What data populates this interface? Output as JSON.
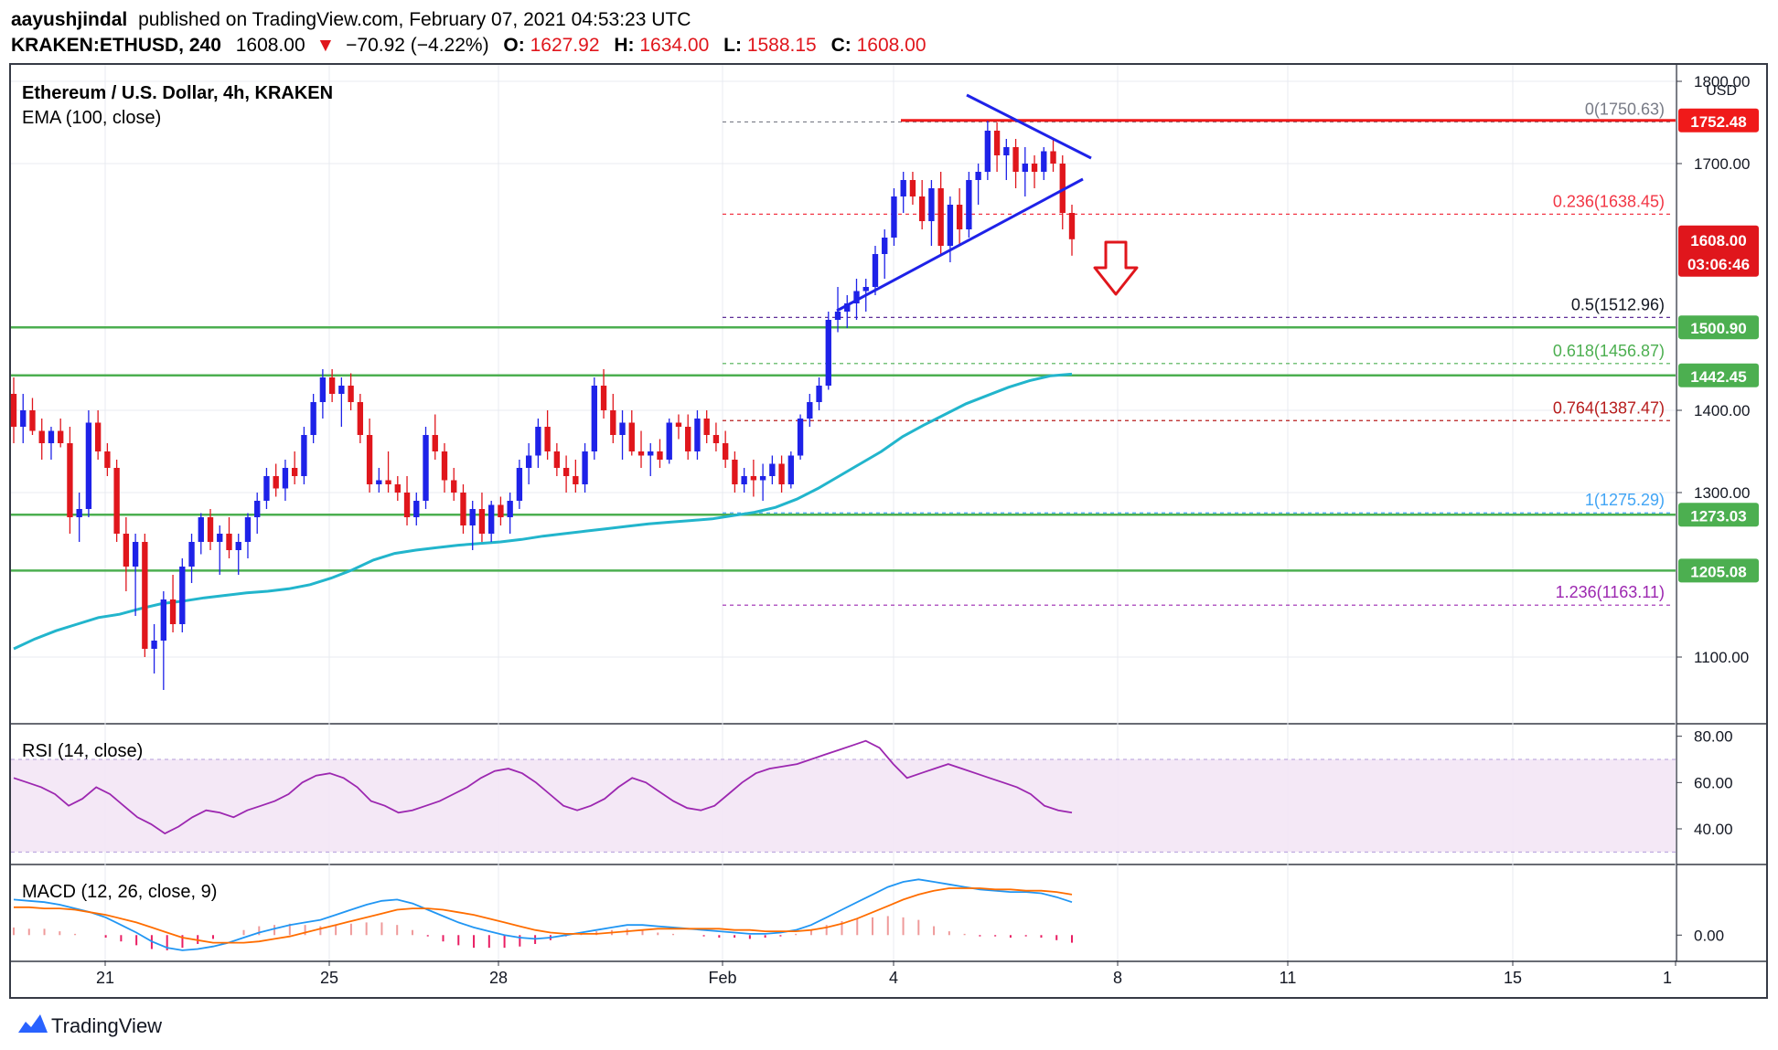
{
  "header": {
    "author": "aayushjindal",
    "published": "published on TradingView.com, February 07, 2021 04:53:23 UTC",
    "ticker": "KRAKEN:ETHUSD, 240",
    "last": "1608.00",
    "change": "−70.92 (−4.22%)",
    "open_label": "O:",
    "open": "1627.92",
    "high_label": "H:",
    "high": "1634.00",
    "low_label": "L:",
    "low": "1588.15",
    "close_label": "C:",
    "close": "1608.00"
  },
  "legend": {
    "symbol": "Ethereum / U.S. Dollar, 4h, KRAKEN",
    "ema": "EMA (100, close)",
    "currency": "USD"
  },
  "footer": {
    "logo_text": "TradingView"
  },
  "colors": {
    "up": "#1e22e8",
    "down": "#e0161c",
    "ema": "#22b5cc",
    "support": "#4caf50",
    "resistance": "#f01a1a",
    "rsi": "#9c27b0",
    "macd": "#2196f3",
    "signal": "#ff6d00",
    "hist": "#e91e63"
  },
  "chart_data": [
    {
      "type": "candlestick",
      "title": "Ethereum / U.S. Dollar, 4h, KRAKEN",
      "ylim": [
        1020,
        1820
      ],
      "x_ticks": [
        "21",
        "25",
        "28",
        "Feb",
        "4",
        "8",
        "11",
        "15",
        "1"
      ],
      "y_ticks": [
        "1800.00",
        "1700.00",
        "1400.00",
        "1300.00",
        "1100.00"
      ],
      "current_price": {
        "value": "1608.00",
        "countdown": "03:06:46"
      },
      "horizontal_levels": [
        {
          "label": "1752.48",
          "value": 1752.48,
          "role": "resistance"
        },
        {
          "label": "1500.90",
          "value": 1500.9,
          "role": "support"
        },
        {
          "label": "1442.45",
          "value": 1442.45,
          "role": "support"
        },
        {
          "label": "1273.03",
          "value": 1273.03,
          "role": "support"
        },
        {
          "label": "1205.08",
          "value": 1205.08,
          "role": "support"
        }
      ],
      "fibonacci": [
        {
          "label": "0(1750.63)",
          "value": 1750.63,
          "color": "#787b86"
        },
        {
          "label": "0.236(1638.45)",
          "value": 1638.45,
          "color": "#f23645"
        },
        {
          "label": "0.5(1512.96)",
          "value": 1512.96,
          "color": "#4a148c"
        },
        {
          "label": "0.618(1456.87)",
          "value": 1456.87,
          "color": "#4caf50"
        },
        {
          "label": "0.764(1387.47)",
          "value": 1387.47,
          "color": "#b71c1c"
        },
        {
          "label": "1(1275.29)",
          "value": 1275.29,
          "color": "#42a5f5"
        },
        {
          "label": "1.236(1163.11)",
          "value": 1163.11,
          "color": "#9c27b0"
        }
      ],
      "ema_100": [
        1110,
        1122,
        1132,
        1140,
        1148,
        1152,
        1159,
        1165,
        1168,
        1172,
        1175,
        1178,
        1180,
        1183,
        1188,
        1196,
        1206,
        1218,
        1226,
        1230,
        1233,
        1236,
        1238,
        1240,
        1243,
        1247,
        1250,
        1253,
        1256,
        1259,
        1262,
        1264,
        1266,
        1268,
        1272,
        1276,
        1282,
        1292,
        1305,
        1320,
        1335,
        1350,
        1368,
        1382,
        1395,
        1408,
        1418,
        1428,
        1436,
        1442,
        1444
      ],
      "candles_ohlc": [
        [
          1420,
          1440,
          1360,
          1380
        ],
        [
          1380,
          1420,
          1360,
          1400
        ],
        [
          1400,
          1415,
          1370,
          1375
        ],
        [
          1375,
          1390,
          1340,
          1360
        ],
        [
          1360,
          1380,
          1340,
          1375
        ],
        [
          1375,
          1390,
          1355,
          1360
        ],
        [
          1360,
          1380,
          1250,
          1270
        ],
        [
          1270,
          1300,
          1240,
          1280
        ],
        [
          1280,
          1400,
          1270,
          1385
        ],
        [
          1385,
          1400,
          1340,
          1350
        ],
        [
          1350,
          1360,
          1320,
          1330
        ],
        [
          1330,
          1340,
          1240,
          1250
        ],
        [
          1250,
          1270,
          1180,
          1210
        ],
        [
          1210,
          1250,
          1150,
          1240
        ],
        [
          1240,
          1250,
          1100,
          1110
        ],
        [
          1110,
          1140,
          1080,
          1120
        ],
        [
          1120,
          1180,
          1060,
          1170
        ],
        [
          1170,
          1200,
          1130,
          1140
        ],
        [
          1140,
          1220,
          1130,
          1210
        ],
        [
          1210,
          1250,
          1190,
          1240
        ],
        [
          1240,
          1275,
          1225,
          1270
        ],
        [
          1270,
          1280,
          1230,
          1240
        ],
        [
          1240,
          1260,
          1200,
          1250
        ],
        [
          1250,
          1270,
          1220,
          1230
        ],
        [
          1230,
          1250,
          1200,
          1240
        ],
        [
          1240,
          1275,
          1220,
          1270
        ],
        [
          1270,
          1300,
          1250,
          1290
        ],
        [
          1290,
          1330,
          1280,
          1320
        ],
        [
          1320,
          1335,
          1295,
          1305
        ],
        [
          1305,
          1340,
          1290,
          1330
        ],
        [
          1330,
          1350,
          1310,
          1320
        ],
        [
          1320,
          1380,
          1310,
          1370
        ],
        [
          1370,
          1420,
          1360,
          1410
        ],
        [
          1410,
          1450,
          1390,
          1440
        ],
        [
          1440,
          1450,
          1410,
          1420
        ],
        [
          1420,
          1440,
          1380,
          1430
        ],
        [
          1430,
          1445,
          1400,
          1410
        ],
        [
          1410,
          1420,
          1360,
          1370
        ],
        [
          1370,
          1390,
          1300,
          1310
        ],
        [
          1310,
          1330,
          1300,
          1315
        ],
        [
          1315,
          1350,
          1300,
          1310
        ],
        [
          1310,
          1320,
          1290,
          1300
        ],
        [
          1300,
          1320,
          1260,
          1270
        ],
        [
          1270,
          1300,
          1260,
          1290
        ],
        [
          1290,
          1380,
          1280,
          1370
        ],
        [
          1370,
          1395,
          1340,
          1350
        ],
        [
          1350,
          1360,
          1300,
          1315
        ],
        [
          1315,
          1330,
          1290,
          1300
        ],
        [
          1300,
          1310,
          1250,
          1260
        ],
        [
          1260,
          1290,
          1230,
          1280
        ],
        [
          1280,
          1300,
          1240,
          1250
        ],
        [
          1250,
          1290,
          1240,
          1285
        ],
        [
          1285,
          1295,
          1260,
          1270
        ],
        [
          1270,
          1300,
          1250,
          1290
        ],
        [
          1290,
          1340,
          1280,
          1330
        ],
        [
          1330,
          1360,
          1310,
          1345
        ],
        [
          1345,
          1390,
          1330,
          1380
        ],
        [
          1380,
          1400,
          1340,
          1350
        ],
        [
          1350,
          1360,
          1320,
          1330
        ],
        [
          1330,
          1345,
          1300,
          1320
        ],
        [
          1320,
          1340,
          1300,
          1310
        ],
        [
          1310,
          1360,
          1300,
          1350
        ],
        [
          1350,
          1440,
          1340,
          1430
        ],
        [
          1430,
          1450,
          1390,
          1400
        ],
        [
          1400,
          1420,
          1360,
          1370
        ],
        [
          1370,
          1400,
          1340,
          1385
        ],
        [
          1385,
          1400,
          1345,
          1350
        ],
        [
          1350,
          1375,
          1330,
          1345
        ],
        [
          1345,
          1360,
          1320,
          1350
        ],
        [
          1350,
          1365,
          1330,
          1340
        ],
        [
          1340,
          1390,
          1335,
          1385
        ],
        [
          1385,
          1395,
          1365,
          1380
        ],
        [
          1380,
          1395,
          1340,
          1350
        ],
        [
          1350,
          1400,
          1340,
          1390
        ],
        [
          1390,
          1400,
          1360,
          1370
        ],
        [
          1370,
          1385,
          1350,
          1360
        ],
        [
          1360,
          1375,
          1330,
          1340
        ],
        [
          1340,
          1350,
          1300,
          1310
        ],
        [
          1310,
          1330,
          1300,
          1320
        ],
        [
          1320,
          1340,
          1295,
          1315
        ],
        [
          1315,
          1335,
          1290,
          1320
        ],
        [
          1320,
          1345,
          1310,
          1335
        ],
        [
          1335,
          1345,
          1300,
          1310
        ],
        [
          1310,
          1350,
          1305,
          1345
        ],
        [
          1345,
          1395,
          1340,
          1390
        ],
        [
          1390,
          1420,
          1380,
          1410
        ],
        [
          1410,
          1440,
          1400,
          1430
        ],
        [
          1430,
          1520,
          1425,
          1510
        ],
        [
          1510,
          1550,
          1495,
          1520
        ],
        [
          1520,
          1540,
          1500,
          1530
        ],
        [
          1530,
          1560,
          1510,
          1545
        ],
        [
          1545,
          1560,
          1520,
          1550
        ],
        [
          1550,
          1600,
          1540,
          1590
        ],
        [
          1590,
          1620,
          1560,
          1610
        ],
        [
          1610,
          1670,
          1600,
          1660
        ],
        [
          1660,
          1690,
          1640,
          1680
        ],
        [
          1680,
          1690,
          1650,
          1660
        ],
        [
          1660,
          1680,
          1620,
          1630
        ],
        [
          1630,
          1680,
          1600,
          1670
        ],
        [
          1670,
          1690,
          1590,
          1600
        ],
        [
          1600,
          1660,
          1580,
          1650
        ],
        [
          1650,
          1670,
          1600,
          1620
        ],
        [
          1620,
          1690,
          1610,
          1680
        ],
        [
          1680,
          1700,
          1650,
          1690
        ],
        [
          1690,
          1752,
          1680,
          1740
        ],
        [
          1740,
          1750,
          1690,
          1710
        ],
        [
          1710,
          1730,
          1680,
          1720
        ],
        [
          1720,
          1730,
          1670,
          1690
        ],
        [
          1690,
          1720,
          1660,
          1700
        ],
        [
          1700,
          1710,
          1670,
          1690
        ],
        [
          1690,
          1720,
          1680,
          1715
        ],
        [
          1715,
          1730,
          1690,
          1700
        ],
        [
          1700,
          1710,
          1620,
          1640
        ],
        [
          1640,
          1650,
          1588,
          1608
        ]
      ]
    },
    {
      "type": "line",
      "title": "RSI (14, close)",
      "ylim": [
        25,
        85
      ],
      "y_ticks": [
        "80.00",
        "60.00",
        "40.00"
      ],
      "values": [
        62,
        60,
        58,
        55,
        50,
        53,
        58,
        55,
        50,
        45,
        42,
        38,
        41,
        45,
        48,
        47,
        45,
        48,
        50,
        52,
        55,
        60,
        63,
        64,
        62,
        58,
        52,
        50,
        47,
        48,
        50,
        52,
        55,
        58,
        62,
        65,
        66,
        64,
        60,
        55,
        50,
        48,
        50,
        53,
        58,
        62,
        60,
        56,
        52,
        49,
        48,
        50,
        55,
        60,
        64,
        66,
        67,
        68,
        70,
        72,
        74,
        76,
        78,
        75,
        68,
        62,
        64,
        66,
        68,
        66,
        64,
        62,
        60,
        58,
        55,
        50,
        48,
        47
      ]
    },
    {
      "type": "line",
      "title": "MACD (12, 26, close, 9)",
      "ylim": [
        -20,
        55
      ],
      "y_ticks": [
        "0.00"
      ],
      "series": [
        {
          "values": [
            28,
            27,
            26,
            24,
            21,
            18,
            14,
            8,
            2,
            -5,
            -10,
            -12,
            -11,
            -9,
            -6,
            -2,
            2,
            5,
            8,
            10,
            12,
            16,
            20,
            24,
            27,
            28,
            25,
            20,
            15,
            10,
            6,
            3,
            0,
            -2,
            -3,
            -2,
            0,
            2,
            4,
            6,
            8,
            8,
            7,
            6,
            5,
            4,
            3,
            2,
            1,
            1,
            2,
            4,
            8,
            14,
            20,
            26,
            32,
            38,
            42,
            44,
            42,
            40,
            38,
            36,
            35,
            34,
            34,
            33,
            30,
            26
          ]
        },
        {
          "values": [
            22,
            22,
            21,
            21,
            20,
            18,
            16,
            13,
            10,
            6,
            2,
            -2,
            -4,
            -6,
            -6,
            -6,
            -5,
            -3,
            -1,
            2,
            5,
            8,
            11,
            14,
            17,
            20,
            21,
            21,
            20,
            18,
            16,
            13,
            10,
            7,
            4,
            2,
            1,
            1,
            1,
            2,
            3,
            4,
            5,
            5,
            5,
            5,
            5,
            4,
            4,
            3,
            3,
            3,
            4,
            6,
            9,
            13,
            18,
            23,
            28,
            32,
            35,
            37,
            37,
            37,
            36,
            36,
            35,
            35,
            34,
            32
          ]
        }
      ],
      "histogram": [
        6,
        5,
        5,
        3,
        1,
        0,
        -2,
        -5,
        -8,
        -11,
        -12,
        -10,
        -7,
        -3,
        0,
        4,
        7,
        8,
        9,
        8,
        7,
        8,
        9,
        10,
        10,
        8,
        4,
        -1,
        -5,
        -8,
        -10,
        -10,
        -10,
        -9,
        -7,
        -4,
        -1,
        1,
        3,
        4,
        5,
        4,
        2,
        1,
        0,
        -1,
        -2,
        -2,
        -3,
        -2,
        -1,
        1,
        4,
        8,
        11,
        13,
        14,
        15,
        14,
        12,
        7,
        3,
        1,
        -1,
        -1,
        -2,
        -1,
        -2,
        -4,
        -6
      ]
    }
  ]
}
